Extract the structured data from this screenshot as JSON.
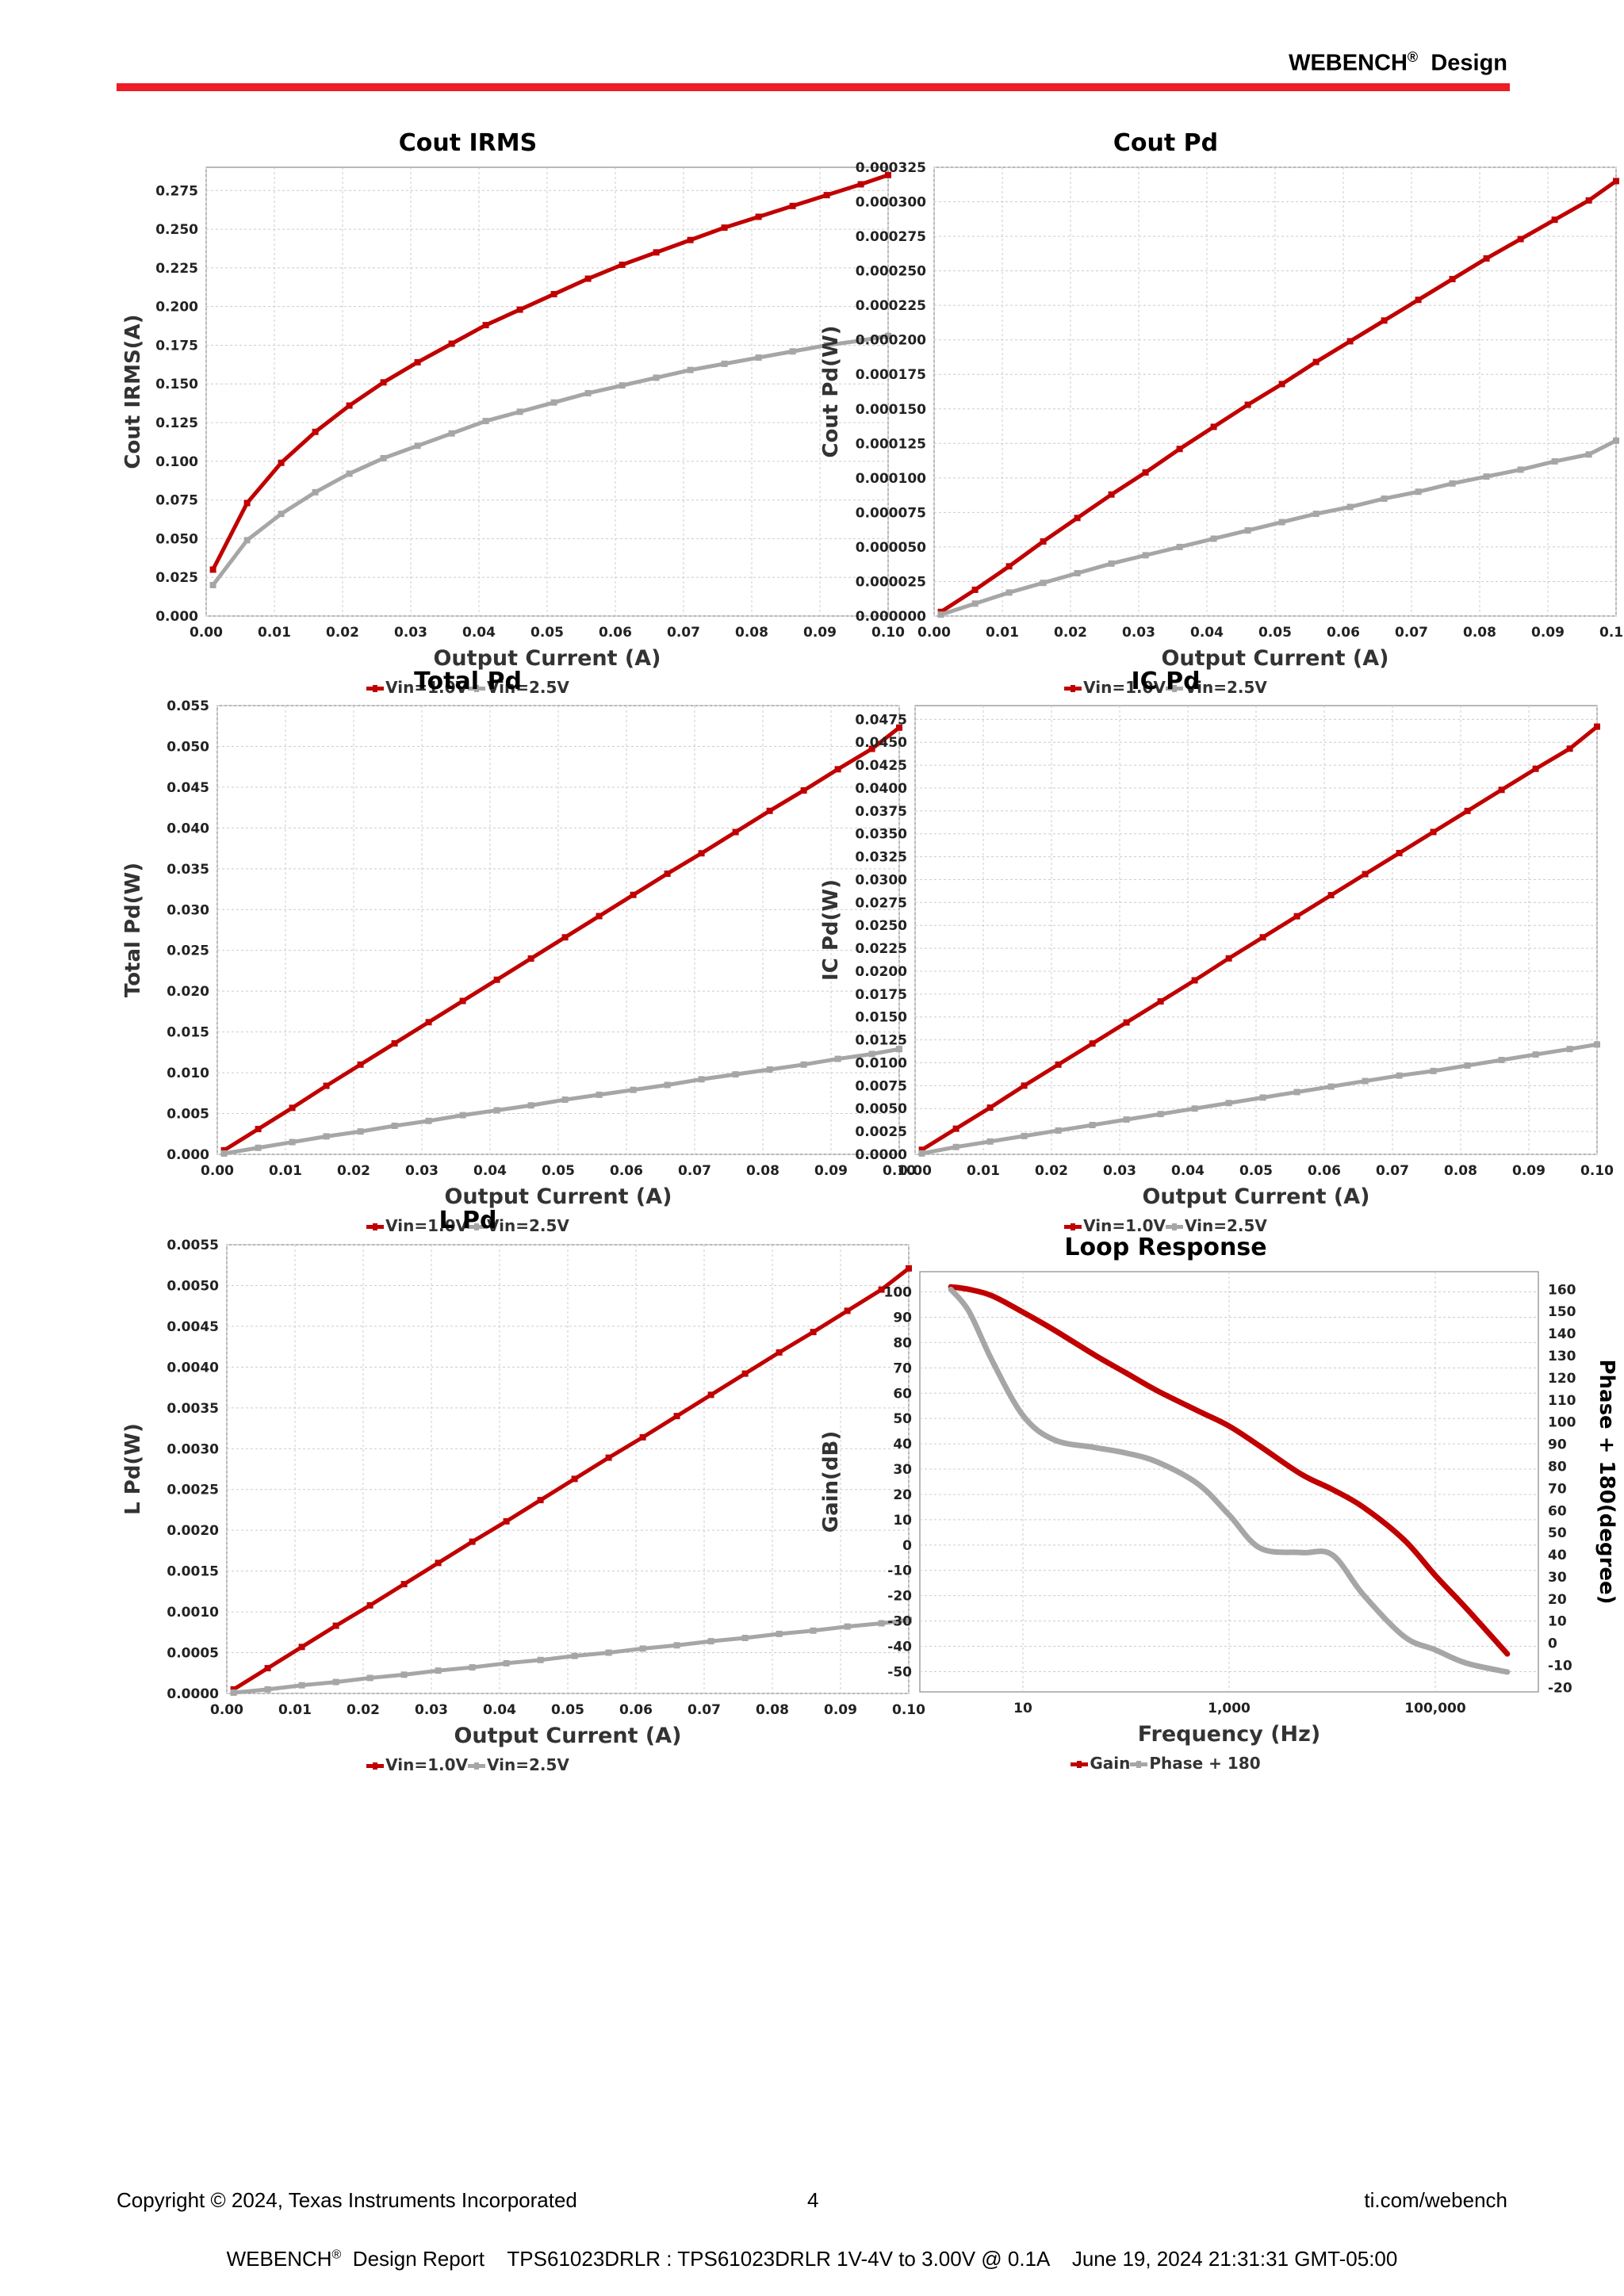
{
  "header": {
    "brand": "WEBENCH",
    "reg": "®",
    "brand_suffix": "Design"
  },
  "footer": {
    "copyright": "Copyright © 2024, Texas Instruments Incorporated",
    "page_number": "4",
    "site": "ti.com/webench",
    "report_brand": "WEBENCH",
    "reg": "®",
    "report_line": "Design Report    TPS61023DRLR : TPS61023DRLR 1V-4V to 3.00V @ 0.1A    June 19, 2024 21:31:31 GMT-05:00"
  },
  "colors": {
    "series1": "#c00000",
    "series2": "#a6a6a6",
    "header_rule": "#ee1c25",
    "grid": "#cccccc"
  },
  "chart_data": [
    {
      "type": "line",
      "title": "Cout IRMS",
      "xlabel": "Output Current (A)",
      "ylabel": "Cout IRMS(A)",
      "xlim": [
        0,
        0.1
      ],
      "ylim": [
        0,
        0.29
      ],
      "xstep": 0.01,
      "xdec": 2,
      "ystep": 0.025,
      "ydec": 3,
      "legend": "bottom-center",
      "grid": true,
      "x": [
        0.001,
        0.006,
        0.011,
        0.016,
        0.021,
        0.026,
        0.031,
        0.036,
        0.041,
        0.046,
        0.051,
        0.056,
        0.061,
        0.066,
        0.071,
        0.076,
        0.081,
        0.086,
        0.091,
        0.096,
        0.1
      ],
      "series": [
        {
          "name": "Vin=1.0V",
          "values": [
            0.03,
            0.073,
            0.099,
            0.119,
            0.136,
            0.151,
            0.164,
            0.176,
            0.188,
            0.198,
            0.208,
            0.218,
            0.227,
            0.235,
            0.243,
            0.251,
            0.258,
            0.265,
            0.272,
            0.279,
            0.285
          ]
        },
        {
          "name": "Vin=2.5V",
          "values": [
            0.02,
            0.049,
            0.066,
            0.08,
            0.092,
            0.102,
            0.11,
            0.118,
            0.126,
            0.132,
            0.138,
            0.144,
            0.149,
            0.154,
            0.159,
            0.163,
            0.167,
            0.171,
            0.175,
            0.178,
            0.181
          ]
        }
      ]
    },
    {
      "type": "line",
      "title": "Cout Pd",
      "xlabel": "Output Current (A)",
      "ylabel": "Cout Pd(W)",
      "xlim": [
        0,
        0.1
      ],
      "ylim": [
        0,
        0.000325
      ],
      "xstep": 0.01,
      "xdec": 2,
      "ystep": 2.5e-05,
      "ydec": 6,
      "legend": "bottom-center",
      "grid": true,
      "x": [
        0.001,
        0.006,
        0.011,
        0.016,
        0.021,
        0.026,
        0.031,
        0.036,
        0.041,
        0.046,
        0.051,
        0.056,
        0.061,
        0.066,
        0.071,
        0.076,
        0.081,
        0.086,
        0.091,
        0.096,
        0.1
      ],
      "series": [
        {
          "name": "Vin=1.0V",
          "values": [
            3e-06,
            1.9e-05,
            3.6e-05,
            5.4e-05,
            7.1e-05,
            8.8e-05,
            0.000104,
            0.000121,
            0.000137,
            0.000153,
            0.000168,
            0.000184,
            0.000199,
            0.000214,
            0.000229,
            0.000244,
            0.000259,
            0.000273,
            0.000287,
            0.000301,
            0.000315
          ]
        },
        {
          "name": "Vin=2.5V",
          "values": [
            1e-06,
            9e-06,
            1.7e-05,
            2.4e-05,
            3.1e-05,
            3.8e-05,
            4.4e-05,
            5e-05,
            5.6e-05,
            6.2e-05,
            6.8e-05,
            7.4e-05,
            7.9e-05,
            8.5e-05,
            9e-05,
            9.6e-05,
            0.000101,
            0.000106,
            0.000112,
            0.000117,
            0.000127
          ]
        }
      ]
    },
    {
      "type": "line",
      "title": "Total Pd",
      "xlabel": "Output Current (A)",
      "ylabel": "Total Pd(W)",
      "xlim": [
        0,
        0.1
      ],
      "ylim": [
        0,
        0.055
      ],
      "xstep": 0.01,
      "xdec": 2,
      "ystep": 0.005,
      "ydec": 3,
      "legend": "bottom-center",
      "grid": true,
      "x": [
        0.001,
        0.006,
        0.011,
        0.016,
        0.021,
        0.026,
        0.031,
        0.036,
        0.041,
        0.046,
        0.051,
        0.056,
        0.061,
        0.066,
        0.071,
        0.076,
        0.081,
        0.086,
        0.091,
        0.096,
        0.1
      ],
      "series": [
        {
          "name": "Vin=1.0V",
          "values": [
            0.0005,
            0.0031,
            0.0057,
            0.0084,
            0.011,
            0.0136,
            0.0162,
            0.0188,
            0.0214,
            0.024,
            0.0266,
            0.0292,
            0.0318,
            0.0344,
            0.0369,
            0.0395,
            0.0421,
            0.0446,
            0.0472,
            0.0497,
            0.0523
          ]
        },
        {
          "name": "Vin=2.5V",
          "values": [
            0.0001,
            0.0008,
            0.0015,
            0.0022,
            0.0028,
            0.0035,
            0.0041,
            0.0048,
            0.0054,
            0.006,
            0.0067,
            0.0073,
            0.0079,
            0.0085,
            0.0092,
            0.0098,
            0.0104,
            0.011,
            0.0117,
            0.0123,
            0.0129
          ]
        }
      ]
    },
    {
      "type": "line",
      "title": "IC Pd",
      "xlabel": "Output Current (A)",
      "ylabel": "IC Pd(W)",
      "xlim": [
        0,
        0.1
      ],
      "ylim": [
        0,
        0.049
      ],
      "xstep": 0.01,
      "xdec": 2,
      "ystep": 0.0025,
      "ydec": 4,
      "legend": "bottom-center",
      "grid": true,
      "x": [
        0.001,
        0.006,
        0.011,
        0.016,
        0.021,
        0.026,
        0.031,
        0.036,
        0.041,
        0.046,
        0.051,
        0.056,
        0.061,
        0.066,
        0.071,
        0.076,
        0.081,
        0.086,
        0.091,
        0.096,
        0.1
      ],
      "series": [
        {
          "name": "Vin=1.0V",
          "values": [
            0.0005,
            0.0028,
            0.0051,
            0.0075,
            0.0098,
            0.0121,
            0.0144,
            0.0167,
            0.019,
            0.0214,
            0.0237,
            0.026,
            0.0283,
            0.0306,
            0.0329,
            0.0352,
            0.0375,
            0.0398,
            0.0421,
            0.0443,
            0.0467
          ]
        },
        {
          "name": "Vin=2.5V",
          "values": [
            0.0001,
            0.0008,
            0.0014,
            0.002,
            0.0026,
            0.0032,
            0.0038,
            0.0044,
            0.005,
            0.0056,
            0.0062,
            0.0068,
            0.0074,
            0.008,
            0.0086,
            0.0091,
            0.0097,
            0.0103,
            0.0109,
            0.0115,
            0.012
          ]
        }
      ]
    },
    {
      "type": "line",
      "title": "L Pd",
      "xlabel": "Output Current (A)",
      "ylabel": "L Pd(W)",
      "xlim": [
        0,
        0.1
      ],
      "ylim": [
        0,
        0.0055
      ],
      "xstep": 0.01,
      "xdec": 2,
      "ystep": 0.0005,
      "ydec": 4,
      "legend": "bottom-center",
      "grid": true,
      "x": [
        0.001,
        0.006,
        0.011,
        0.016,
        0.021,
        0.026,
        0.031,
        0.036,
        0.041,
        0.046,
        0.051,
        0.056,
        0.061,
        0.066,
        0.071,
        0.076,
        0.081,
        0.086,
        0.091,
        0.096,
        0.1
      ],
      "series": [
        {
          "name": "Vin=1.0V",
          "values": [
            5e-05,
            0.00031,
            0.00057,
            0.00083,
            0.00108,
            0.00134,
            0.0016,
            0.00186,
            0.00211,
            0.00237,
            0.00263,
            0.00289,
            0.00314,
            0.0034,
            0.00366,
            0.00392,
            0.00418,
            0.00443,
            0.00469,
            0.00495,
            0.00521
          ]
        },
        {
          "name": "Vin=2.5V",
          "values": [
            1e-05,
            5e-05,
            0.0001,
            0.00014,
            0.00019,
            0.00023,
            0.00028,
            0.00032,
            0.00037,
            0.00041,
            0.00046,
            0.0005,
            0.00055,
            0.00059,
            0.00064,
            0.00068,
            0.00073,
            0.00077,
            0.00082,
            0.00086,
            0.0009
          ]
        }
      ]
    },
    {
      "type": "line",
      "title": "Loop Response",
      "xlabel": "Frequency (Hz)",
      "ylabel": "Gain(dB)",
      "y2label": "Phase + 180(degree)",
      "xscale": "log",
      "xlim": [
        1,
        1000000
      ],
      "xticks": [
        10,
        1000,
        100000
      ],
      "xtick_labels": [
        "10",
        "1,000",
        "100,000"
      ],
      "ylim": [
        -58,
        108
      ],
      "yticks": [
        100,
        90,
        80,
        70,
        60,
        50,
        40,
        30,
        20,
        10,
        0,
        -10,
        -20,
        -30,
        -40,
        -50
      ],
      "y2lim": [
        -22,
        168
      ],
      "y2ticks": [
        160,
        150,
        140,
        130,
        120,
        110,
        100,
        90,
        80,
        70,
        60,
        50,
        40,
        30,
        20,
        10,
        0,
        -10,
        -20
      ],
      "legend": "bottom-center",
      "grid": true,
      "x": [
        2,
        3,
        5,
        10,
        20,
        50,
        100,
        200,
        500,
        1000,
        2000,
        5000,
        10000,
        20000,
        50000,
        100000,
        200000,
        500000
      ],
      "series": [
        {
          "name": "Gain",
          "axis": "left",
          "values": [
            102,
            101,
            98.5,
            92,
            85,
            75,
            68,
            61,
            53,
            47,
            39,
            28,
            22,
            15,
            2,
            -12,
            -25,
            -43
          ]
        },
        {
          "name": "Phase + 180",
          "axis": "right",
          "values": [
            160,
            150,
            128,
            103,
            92,
            88.5,
            86,
            82,
            72,
            58,
            43,
            41,
            40,
            22,
            3,
            -3,
            -9,
            -13
          ]
        }
      ]
    }
  ]
}
